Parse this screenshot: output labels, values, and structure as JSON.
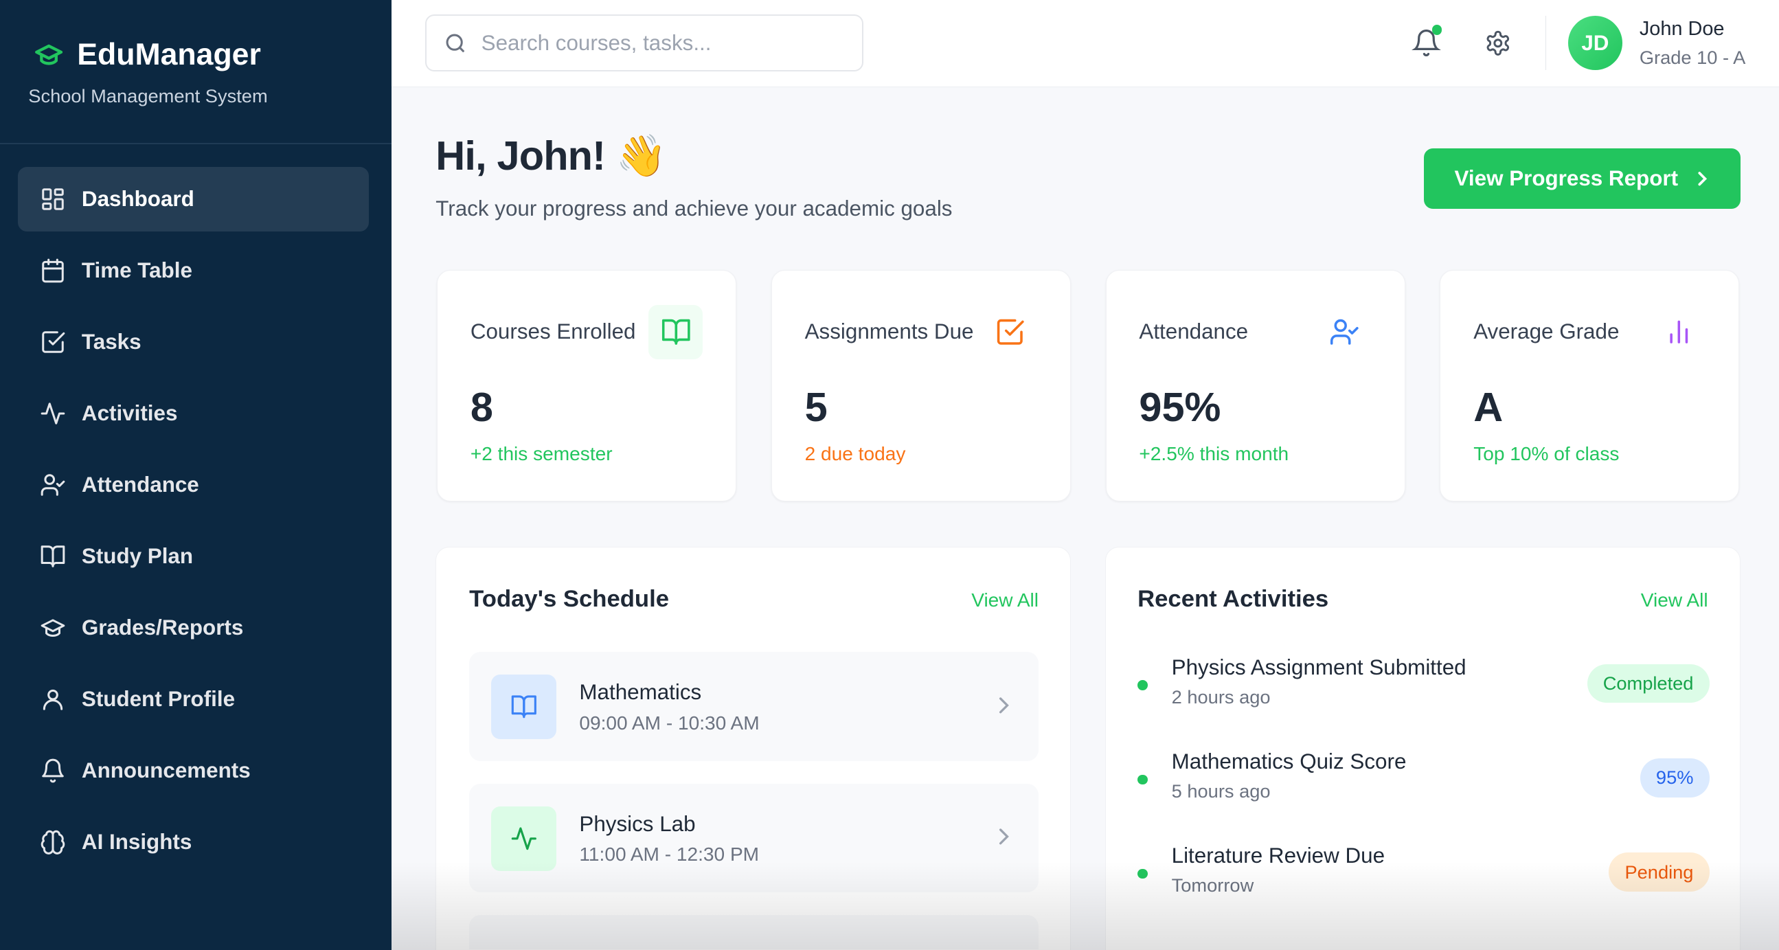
{
  "brand": {
    "name": "EduManager",
    "subtitle": "School Management System",
    "accent": "#22c55e"
  },
  "sidebar": {
    "items": [
      {
        "label": "Dashboard",
        "icon": "layout-grid-icon",
        "active": true
      },
      {
        "label": "Time Table",
        "icon": "calendar-icon"
      },
      {
        "label": "Tasks",
        "icon": "check-square-icon"
      },
      {
        "label": "Activities",
        "icon": "activity-icon"
      },
      {
        "label": "Attendance",
        "icon": "user-check-icon"
      },
      {
        "label": "Study Plan",
        "icon": "book-open-icon"
      },
      {
        "label": "Grades/Reports",
        "icon": "graduation-cap-icon"
      },
      {
        "label": "Student Profile",
        "icon": "user-icon"
      },
      {
        "label": "Announcements",
        "icon": "bell-icon"
      },
      {
        "label": "AI Insights",
        "icon": "brain-icon"
      }
    ]
  },
  "topbar": {
    "search_placeholder": "Search courses, tasks...",
    "user": {
      "initials": "JD",
      "name": "John Doe",
      "grade": "Grade 10 - A"
    }
  },
  "header": {
    "greeting": "Hi, John! 👋",
    "subtitle": "Track your progress and achieve your academic goals",
    "cta": "View Progress Report"
  },
  "stats": [
    {
      "title": "Courses Enrolled",
      "value": "8",
      "sub": "+2 this semester",
      "sub_color": "#22c55e",
      "icon": "book-open-icon"
    },
    {
      "title": "Assignments Due",
      "value": "5",
      "sub": "2 due today",
      "sub_color": "#f97316",
      "icon": "check-square-icon"
    },
    {
      "title": "Attendance",
      "value": "95%",
      "sub": "+2.5% this month",
      "sub_color": "#22c55e",
      "icon": "user-check-icon"
    },
    {
      "title": "Average Grade",
      "value": "A",
      "sub": "Top 10% of class",
      "sub_color": "#22c55e",
      "icon": "bar-chart-icon"
    }
  ],
  "schedule": {
    "title": "Today's Schedule",
    "view_all": "View All",
    "items": [
      {
        "title": "Mathematics",
        "time": "09:00 AM - 10:30 AM",
        "icon": "book-open-icon"
      },
      {
        "title": "Physics Lab",
        "time": "11:00 AM - 12:30 PM",
        "icon": "activity-icon"
      }
    ]
  },
  "activities": {
    "title": "Recent Activities",
    "view_all": "View All",
    "items": [
      {
        "title": "Physics Assignment Submitted",
        "time": "2 hours ago",
        "badge": "Completed",
        "badge_bg": "#dcfce7",
        "badge_fg": "#16a34a"
      },
      {
        "title": "Mathematics Quiz Score",
        "time": "5 hours ago",
        "badge": "95%",
        "badge_bg": "#dbeafe",
        "badge_fg": "#2563eb"
      },
      {
        "title": "Literature Review Due",
        "time": "Tomorrow",
        "badge": "Pending",
        "badge_bg": "#ffedd5",
        "badge_fg": "#ea580c"
      }
    ]
  }
}
